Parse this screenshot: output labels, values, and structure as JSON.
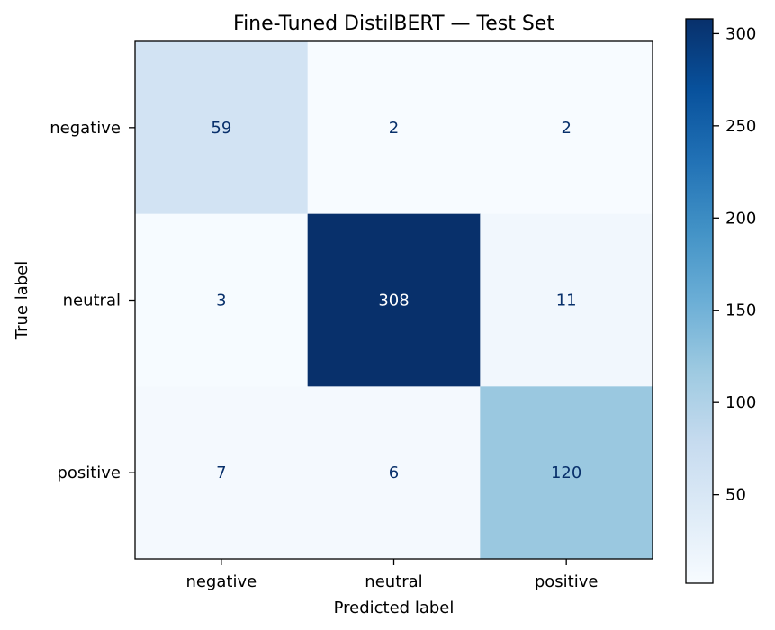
{
  "chart_data": {
    "type": "heatmap",
    "title": "Fine-Tuned DistilBERT — Test Set",
    "xlabel": "Predicted label",
    "ylabel": "True label",
    "x_categories": [
      "negative",
      "neutral",
      "positive"
    ],
    "y_categories": [
      "negative",
      "neutral",
      "positive"
    ],
    "matrix": [
      [
        59,
        2,
        2
      ],
      [
        3,
        308,
        11
      ],
      [
        7,
        6,
        120
      ]
    ],
    "colormap": "Blues",
    "colorbar": {
      "range": [
        2,
        308
      ],
      "ticks": [
        50,
        100,
        150,
        200,
        250,
        300
      ]
    },
    "grid": false
  },
  "colors": {
    "text_light": "#ffffff",
    "text_dark": "#08306b"
  }
}
